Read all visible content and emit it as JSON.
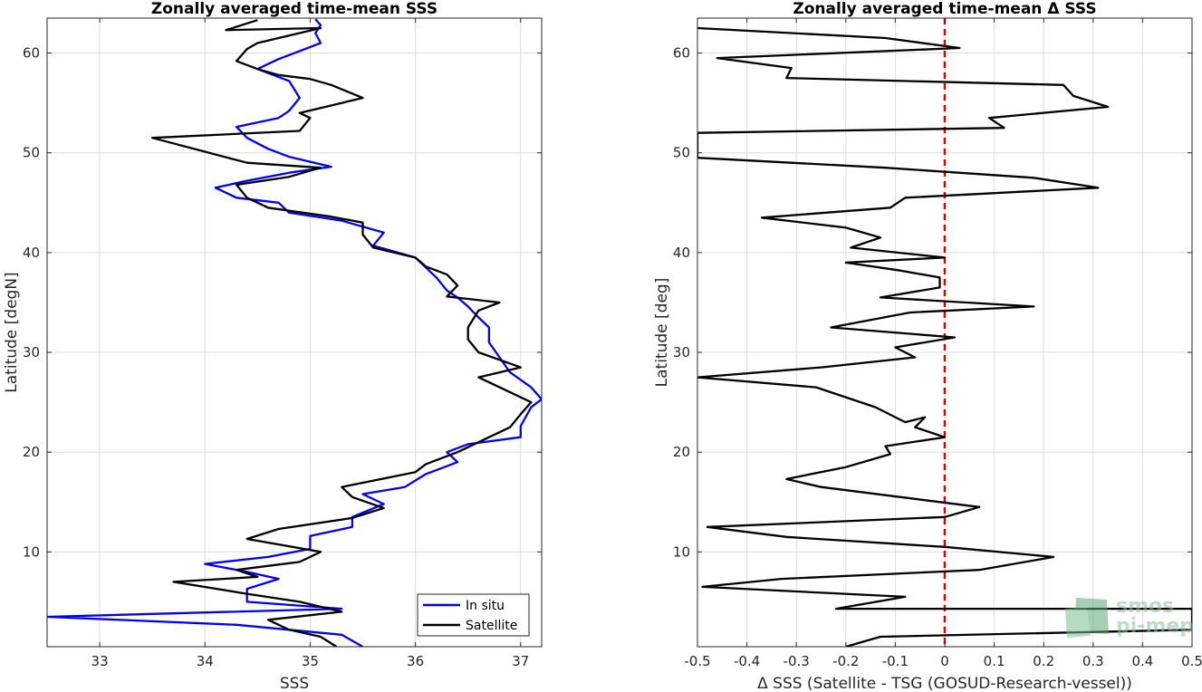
{
  "chart_data": [
    {
      "type": "line",
      "title": "Zonally averaged time-mean SSS",
      "xlabel": "SSS",
      "ylabel": "Latitude [degN]",
      "xlim": [
        32.5,
        37.2
      ],
      "ylim": [
        0.5,
        63.5
      ],
      "xticks": [
        33,
        34,
        35,
        36,
        37
      ],
      "yticks": [
        10,
        20,
        30,
        40,
        50,
        60
      ],
      "grid": true,
      "legend_position": "bottom-right",
      "series": [
        {
          "name": "In situ",
          "color": "#0000ff",
          "points": [
            [
              35.5,
              0.5
            ],
            [
              35.3,
              1.7
            ],
            [
              34.3,
              2.7
            ],
            [
              32.5,
              3.5
            ],
            [
              35.3,
              4.3
            ],
            [
              34.4,
              5.0
            ],
            [
              34.4,
              6.3
            ],
            [
              34.7,
              7.3
            ],
            [
              34.4,
              8.0
            ],
            [
              34.0,
              8.8
            ],
            [
              34.6,
              9.5
            ],
            [
              35.0,
              10.3
            ],
            [
              35.0,
              11.6
            ],
            [
              35.4,
              12.5
            ],
            [
              35.4,
              13.5
            ],
            [
              35.7,
              14.8
            ],
            [
              35.5,
              15.8
            ],
            [
              35.9,
              16.5
            ],
            [
              36.1,
              17.8
            ],
            [
              36.4,
              19.0
            ],
            [
              36.3,
              20.0
            ],
            [
              36.5,
              20.8
            ],
            [
              37.0,
              21.5
            ],
            [
              37.0,
              22.6
            ],
            [
              37.1,
              24.5
            ],
            [
              37.2,
              25.3
            ],
            [
              37.1,
              26.5
            ],
            [
              36.9,
              28.0
            ],
            [
              36.8,
              29.5
            ],
            [
              36.7,
              31.0
            ],
            [
              36.7,
              32.5
            ],
            [
              36.6,
              33.5
            ],
            [
              36.5,
              34.6
            ],
            [
              36.4,
              35.5
            ],
            [
              36.3,
              36.2
            ],
            [
              36.2,
              37.5
            ],
            [
              36.1,
              38.5
            ],
            [
              36.0,
              39.5
            ],
            [
              35.6,
              40.7
            ],
            [
              35.7,
              42.0
            ],
            [
              35.3,
              43.2
            ],
            [
              34.8,
              44.0
            ],
            [
              34.7,
              45.0
            ],
            [
              34.3,
              45.5
            ],
            [
              34.1,
              46.5
            ],
            [
              34.4,
              47.2
            ],
            [
              34.8,
              48.0
            ],
            [
              35.2,
              48.6
            ],
            [
              34.8,
              49.6
            ],
            [
              34.6,
              50.4
            ],
            [
              34.4,
              51.5
            ],
            [
              34.3,
              52.6
            ],
            [
              34.7,
              53.5
            ],
            [
              34.8,
              54.2
            ],
            [
              34.9,
              55.5
            ],
            [
              34.8,
              57.2
            ],
            [
              34.5,
              58.4
            ],
            [
              34.7,
              59.4
            ],
            [
              34.9,
              60.2
            ],
            [
              35.1,
              61.0
            ],
            [
              35.05,
              62.0
            ],
            [
              35.1,
              62.8
            ],
            [
              35.05,
              63.4
            ]
          ]
        },
        {
          "name": "Satellite",
          "color": "#000000",
          "points": [
            [
              35.25,
              0.5
            ],
            [
              35.1,
              1.5
            ],
            [
              34.8,
              2.2
            ],
            [
              34.6,
              3.2
            ],
            [
              35.3,
              4.0
            ],
            [
              34.9,
              5.0
            ],
            [
              34.4,
              5.8
            ],
            [
              33.7,
              7.0
            ],
            [
              34.5,
              7.5
            ],
            [
              34.3,
              8.2
            ],
            [
              34.9,
              9.0
            ],
            [
              35.1,
              10.0
            ],
            [
              34.4,
              11.3
            ],
            [
              34.7,
              12.3
            ],
            [
              35.4,
              13.4
            ],
            [
              35.7,
              14.4
            ],
            [
              35.4,
              15.5
            ],
            [
              35.3,
              16.5
            ],
            [
              36.0,
              18.0
            ],
            [
              36.1,
              18.8
            ],
            [
              36.4,
              20.0
            ],
            [
              36.7,
              21.5
            ],
            [
              36.9,
              22.5
            ],
            [
              37.0,
              23.8
            ],
            [
              37.1,
              25.0
            ],
            [
              36.6,
              27.5
            ],
            [
              37.0,
              28.5
            ],
            [
              36.6,
              30.0
            ],
            [
              36.5,
              31.3
            ],
            [
              36.5,
              32.5
            ],
            [
              36.6,
              34.2
            ],
            [
              36.8,
              35.0
            ],
            [
              36.3,
              35.6
            ],
            [
              36.4,
              36.7
            ],
            [
              36.3,
              37.8
            ],
            [
              36.1,
              38.6
            ],
            [
              36.0,
              39.5
            ],
            [
              35.6,
              40.5
            ],
            [
              35.5,
              41.8
            ],
            [
              35.5,
              43.0
            ],
            [
              35.2,
              43.6
            ],
            [
              34.8,
              44.2
            ],
            [
              34.6,
              44.5
            ],
            [
              34.4,
              45.5
            ],
            [
              34.3,
              46.8
            ],
            [
              34.8,
              47.6
            ],
            [
              35.1,
              48.5
            ],
            [
              34.4,
              49.0
            ],
            [
              33.5,
              51.5
            ],
            [
              34.9,
              52.2
            ],
            [
              35.0,
              53.5
            ],
            [
              34.9,
              54.0
            ],
            [
              35.5,
              55.5
            ],
            [
              35.2,
              56.8
            ],
            [
              35.0,
              57.4
            ],
            [
              34.7,
              57.8
            ],
            [
              34.5,
              58.4
            ],
            [
              34.3,
              59.2
            ],
            [
              34.4,
              60.4
            ],
            [
              34.5,
              61.0
            ],
            [
              35.1,
              62.5
            ],
            [
              34.2,
              62.3
            ],
            [
              34.5,
              63.3
            ]
          ]
        }
      ]
    },
    {
      "type": "line",
      "title": "Zonally averaged time-mean Δ SSS",
      "xlabel": "Δ SSS (Satellite - TSG (GOSUD-Research-vessel))",
      "ylabel": "Latitude [deg]",
      "xlim": [
        -0.5,
        0.5
      ],
      "ylim": [
        0.5,
        63.5
      ],
      "xticks": [
        -0.5,
        -0.4,
        -0.3,
        -0.2,
        -0.1,
        0,
        0.1,
        0.2,
        0.3,
        0.4,
        0.5
      ],
      "xtick_labels": [
        "-0.5",
        "-0.4",
        "-0.3",
        "-0.2",
        "-0.1",
        "0",
        "0.1",
        "0.2",
        "0.3",
        "0.4",
        "0.5"
      ],
      "yticks": [
        10,
        20,
        30,
        40,
        50,
        60
      ],
      "grid": true,
      "reference_line": {
        "x": 0,
        "color": "#e00000",
        "style": "dashed"
      },
      "series": [
        {
          "name": "",
          "color": "#000000",
          "points": [
            [
              -0.2,
              0.5
            ],
            [
              -0.13,
              1.5
            ],
            [
              0.5,
              2.2
            ],
            [
              0.5,
              3.5
            ],
            [
              0.5,
              4.3
            ],
            [
              -0.22,
              4.3
            ],
            [
              -0.08,
              5.5
            ],
            [
              -0.49,
              6.5
            ],
            [
              -0.33,
              7.3
            ],
            [
              0.07,
              8.2
            ],
            [
              0.22,
              9.5
            ],
            [
              0.0,
              10.5
            ],
            [
              -0.32,
              11.5
            ],
            [
              -0.48,
              12.5
            ],
            [
              0.0,
              13.5
            ],
            [
              0.07,
              14.5
            ],
            [
              -0.25,
              16.5
            ],
            [
              -0.32,
              17.3
            ],
            [
              -0.2,
              18.5
            ],
            [
              -0.11,
              19.8
            ],
            [
              -0.12,
              20.6
            ],
            [
              0.0,
              21.5
            ],
            [
              -0.06,
              22.5
            ],
            [
              -0.04,
              23.5
            ],
            [
              -0.08,
              23.0
            ],
            [
              -0.14,
              24.5
            ],
            [
              -0.26,
              26.5
            ],
            [
              -0.5,
              27.5
            ],
            [
              -0.25,
              28.5
            ],
            [
              -0.06,
              29.5
            ],
            [
              -0.1,
              30.5
            ],
            [
              0.02,
              31.5
            ],
            [
              -0.23,
              32.5
            ],
            [
              -0.07,
              34.0
            ],
            [
              0.18,
              34.6
            ],
            [
              -0.13,
              35.5
            ],
            [
              -0.01,
              36.5
            ],
            [
              -0.01,
              37.5
            ],
            [
              -0.09,
              38.2
            ],
            [
              -0.2,
              39.0
            ],
            [
              0.0,
              39.5
            ],
            [
              -0.19,
              40.5
            ],
            [
              -0.13,
              41.5
            ],
            [
              -0.2,
              42.5
            ],
            [
              -0.37,
              43.5
            ],
            [
              -0.11,
              44.5
            ],
            [
              -0.08,
              45.5
            ],
            [
              0.31,
              46.5
            ],
            [
              0.18,
              47.5
            ],
            [
              -0.12,
              48.5
            ],
            [
              -0.5,
              49.5
            ],
            [
              -0.5,
              52.0
            ],
            [
              0.12,
              52.5
            ],
            [
              0.09,
              53.5
            ],
            [
              0.33,
              54.6
            ],
            [
              0.26,
              55.7
            ],
            [
              0.24,
              56.8
            ],
            [
              -0.32,
              57.5
            ],
            [
              -0.31,
              58.5
            ],
            [
              -0.46,
              59.5
            ],
            [
              0.03,
              60.5
            ],
            [
              -0.12,
              61.5
            ],
            [
              -0.5,
              62.5
            ]
          ]
        }
      ]
    }
  ],
  "legend": {
    "entries": [
      {
        "label": "In situ",
        "color": "#0000ff"
      },
      {
        "label": "Satellite",
        "color": "#000000"
      }
    ]
  },
  "watermark": {
    "line1": "smos",
    "line2": "pi-mep"
  }
}
